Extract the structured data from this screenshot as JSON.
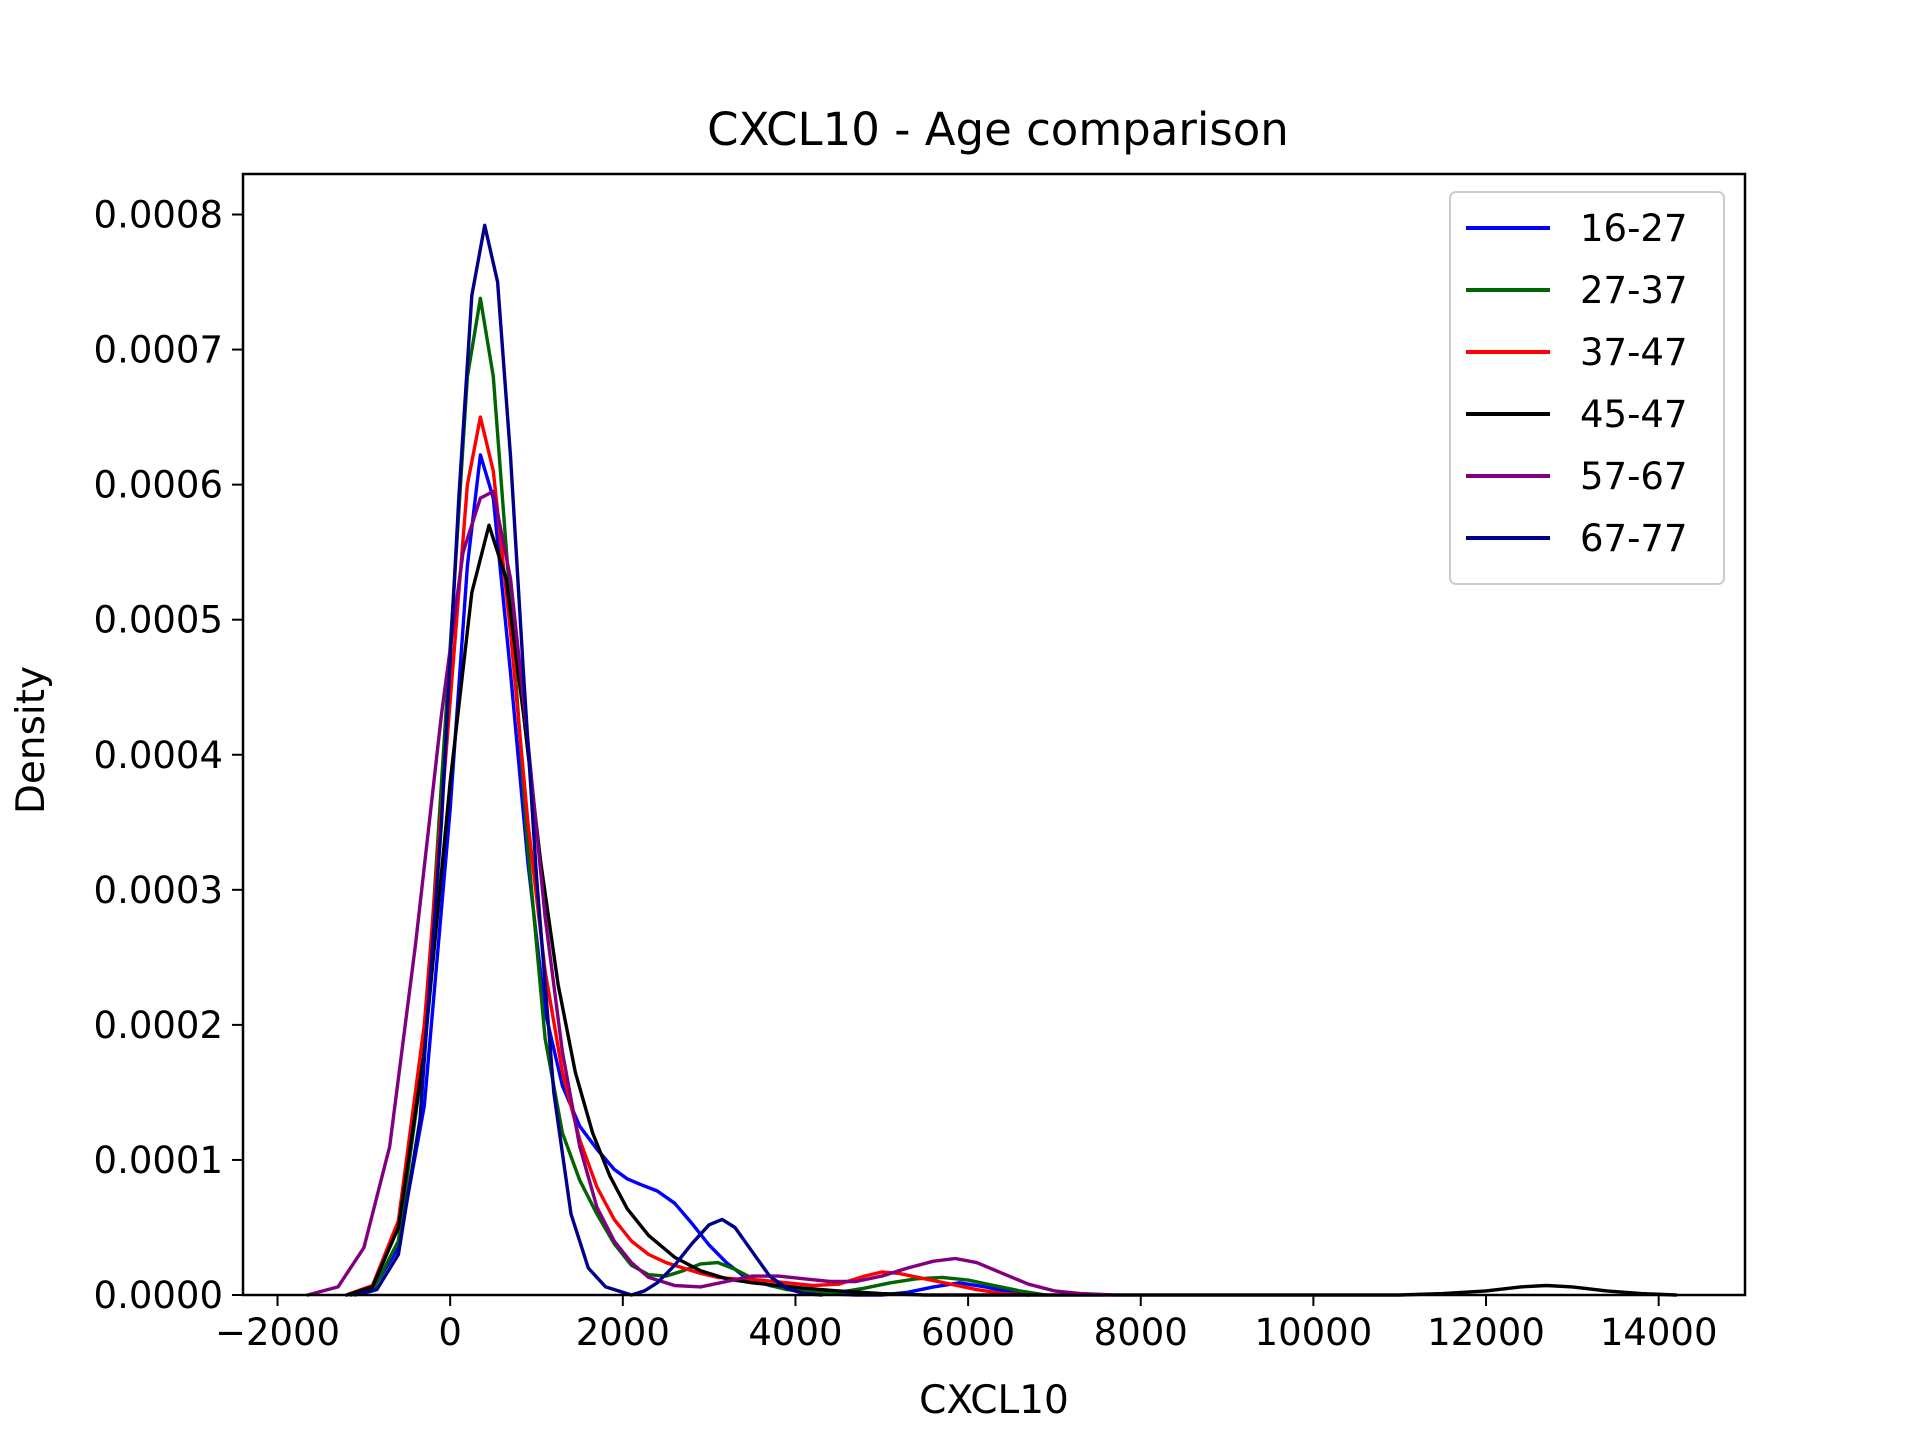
{
  "chart_data": {
    "type": "line",
    "title": "CXCL10 - Age comparison",
    "xlabel": "CXCL10",
    "ylabel": "Density",
    "xlim": [
      -2400,
      15000
    ],
    "ylim": [
      0,
      0.00083
    ],
    "x_ticks": [
      -2000,
      0,
      2000,
      4000,
      6000,
      8000,
      10000,
      12000,
      14000
    ],
    "x_tick_labels": [
      "−2000",
      "0",
      "2000",
      "4000",
      "6000",
      "8000",
      "10000",
      "12000",
      "14000"
    ],
    "y_ticks": [
      0,
      0.0001,
      0.0002,
      0.0003,
      0.0004,
      0.0005,
      0.0006,
      0.0007,
      0.0008
    ],
    "y_tick_labels": [
      "0.0000",
      "0.0001",
      "0.0002",
      "0.0003",
      "0.0004",
      "0.0005",
      "0.0006",
      "0.0007",
      "0.0008"
    ],
    "grid": false,
    "legend_position": "top-right",
    "series": [
      {
        "name": "16-27",
        "color": "#0000ff",
        "x": [
          -1150,
          -900,
          -600,
          -300,
          0,
          200,
          350,
          500,
          700,
          900,
          1100,
          1300,
          1500,
          1700,
          1900,
          2050,
          2200,
          2400,
          2600,
          2800,
          3000,
          3200,
          3400,
          3700,
          4000,
          4300,
          4700,
          5000,
          5300,
          5600,
          5900,
          6200,
          6500,
          6700
        ],
        "y": [
          0.0,
          4e-06,
          3.5e-05,
          0.00014,
          0.00036,
          0.00054,
          0.000622,
          0.00059,
          0.00046,
          0.00032,
          0.00021,
          0.000155,
          0.000125,
          0.000108,
          9.3e-05,
          8.6e-05,
          8.2e-05,
          7.7e-05,
          6.8e-05,
          5.3e-05,
          3.7e-05,
          2.4e-05,
          1.4e-05,
          7e-06,
          3e-06,
          1e-06,
          0.0,
          0.0,
          2e-06,
          6e-06,
          9e-06,
          6e-06,
          2e-06,
          0.0
        ]
      },
      {
        "name": "27-37",
        "color": "#006400",
        "x": [
          -1150,
          -900,
          -600,
          -300,
          0,
          200,
          350,
          500,
          700,
          900,
          1100,
          1300,
          1500,
          1700,
          1900,
          2100,
          2300,
          2500,
          2700,
          2900,
          3100,
          3300,
          3600,
          3900,
          4200,
          4500,
          4800,
          5100,
          5400,
          5700,
          6000,
          6300,
          6600,
          6900
        ],
        "y": [
          0.0,
          3e-06,
          4e-05,
          0.00018,
          0.00048,
          0.00068,
          0.000738,
          0.00068,
          0.00051,
          0.00033,
          0.00019,
          0.00012,
          8.5e-05,
          6e-05,
          3.8e-05,
          2.2e-05,
          1.5e-05,
          1.4e-05,
          1.8e-05,
          2.3e-05,
          2.4e-05,
          1.9e-05,
          9e-06,
          4e-06,
          2e-06,
          2e-06,
          5e-06,
          9e-06,
          1.2e-05,
          1.3e-05,
          1.1e-05,
          7e-06,
          3e-06,
          0.0
        ]
      },
      {
        "name": "37-47",
        "color": "#ff0000",
        "x": [
          -1200,
          -900,
          -600,
          -300,
          0,
          200,
          350,
          500,
          700,
          900,
          1100,
          1300,
          1500,
          1700,
          1900,
          2100,
          2300,
          2500,
          2700,
          2900,
          3100,
          3300,
          3600,
          3900,
          4200,
          4500,
          4800,
          5000,
          5200,
          5500,
          5800,
          6100,
          6400,
          6700
        ],
        "y": [
          0.0,
          7e-06,
          5.5e-05,
          0.0002,
          0.00044,
          0.0006,
          0.00065,
          0.00061,
          0.00049,
          0.00035,
          0.00024,
          0.000165,
          0.000115,
          8e-05,
          5.6e-05,
          4e-05,
          3e-05,
          2.4e-05,
          2e-05,
          1.6e-05,
          1.3e-05,
          1.2e-05,
          1.1e-05,
          9e-06,
          7e-06,
          8e-06,
          1.4e-05,
          1.7e-05,
          1.6e-05,
          1.2e-05,
          8e-06,
          4e-06,
          1e-06,
          0.0
        ]
      },
      {
        "name": "45-47",
        "color": "#000000",
        "x": [
          -1200,
          -900,
          -600,
          -300,
          0,
          250,
          450,
          650,
          850,
          1050,
          1250,
          1450,
          1650,
          1850,
          2050,
          2300,
          2600,
          2900,
          3200,
          3500,
          3800,
          4100,
          4500,
          5000,
          5500,
          6000,
          7000,
          8000,
          9000,
          10000,
          11000,
          11500,
          12000,
          12400,
          12700,
          13000,
          13400,
          13800,
          14200
        ],
        "y": [
          0.0,
          6e-06,
          5e-05,
          0.00018,
          0.00038,
          0.00052,
          0.00057,
          0.00053,
          0.00043,
          0.00032,
          0.00023,
          0.000165,
          0.00012,
          8.8e-05,
          6.4e-05,
          4.4e-05,
          2.8e-05,
          1.8e-05,
          1.2e-05,
          9e-06,
          7e-06,
          5e-06,
          3e-06,
          1e-06,
          0.0,
          0.0,
          0.0,
          0.0,
          0.0,
          0.0,
          0.0,
          1e-06,
          3e-06,
          6e-06,
          7e-06,
          6e-06,
          3e-06,
          1e-06,
          0.0
        ]
      },
      {
        "name": "57-67",
        "color": "#800080",
        "x": [
          -1650,
          -1300,
          -1000,
          -700,
          -400,
          -100,
          150,
          350,
          500,
          700,
          900,
          1100,
          1300,
          1500,
          1700,
          1900,
          2100,
          2300,
          2600,
          2900,
          3200,
          3500,
          3800,
          4100,
          4400,
          4700,
          5000,
          5300,
          5600,
          5850,
          6100,
          6400,
          6700,
          7000,
          7300,
          7700
        ],
        "y": [
          0.0,
          6e-06,
          3.5e-05,
          0.00011,
          0.00026,
          0.00043,
          0.00055,
          0.00059,
          0.000595,
          0.00053,
          0.00041,
          0.00028,
          0.00018,
          0.00011,
          6.5e-05,
          4e-05,
          2.4e-05,
          1.3e-05,
          7e-06,
          6e-06,
          1e-05,
          1.4e-05,
          1.4e-05,
          1.2e-05,
          1e-05,
          1e-05,
          1.4e-05,
          2e-05,
          2.5e-05,
          2.7e-05,
          2.4e-05,
          1.6e-05,
          8e-06,
          3e-06,
          1e-06,
          0.0
        ]
      },
      {
        "name": "67-77",
        "color": "#00008b",
        "x": [
          -1100,
          -850,
          -600,
          -350,
          -100,
          100,
          250,
          400,
          550,
          700,
          850,
          1000,
          1200,
          1400,
          1600,
          1800,
          2000,
          2100,
          2250,
          2400,
          2600,
          2800,
          3000,
          3150,
          3300,
          3500,
          3700,
          3900,
          4100,
          4300
        ],
        "y": [
          0.0,
          4e-06,
          3e-05,
          0.00013,
          0.00035,
          0.00059,
          0.00074,
          0.000792,
          0.00075,
          0.00062,
          0.00046,
          0.00031,
          0.00015,
          6e-05,
          2e-05,
          6e-06,
          2e-06,
          0.0,
          3e-06,
          9e-06,
          2.2e-05,
          3.8e-05,
          5.2e-05,
          5.6e-05,
          5e-05,
          3.2e-05,
          1.4e-05,
          5e-06,
          1e-06,
          0.0
        ]
      }
    ]
  }
}
